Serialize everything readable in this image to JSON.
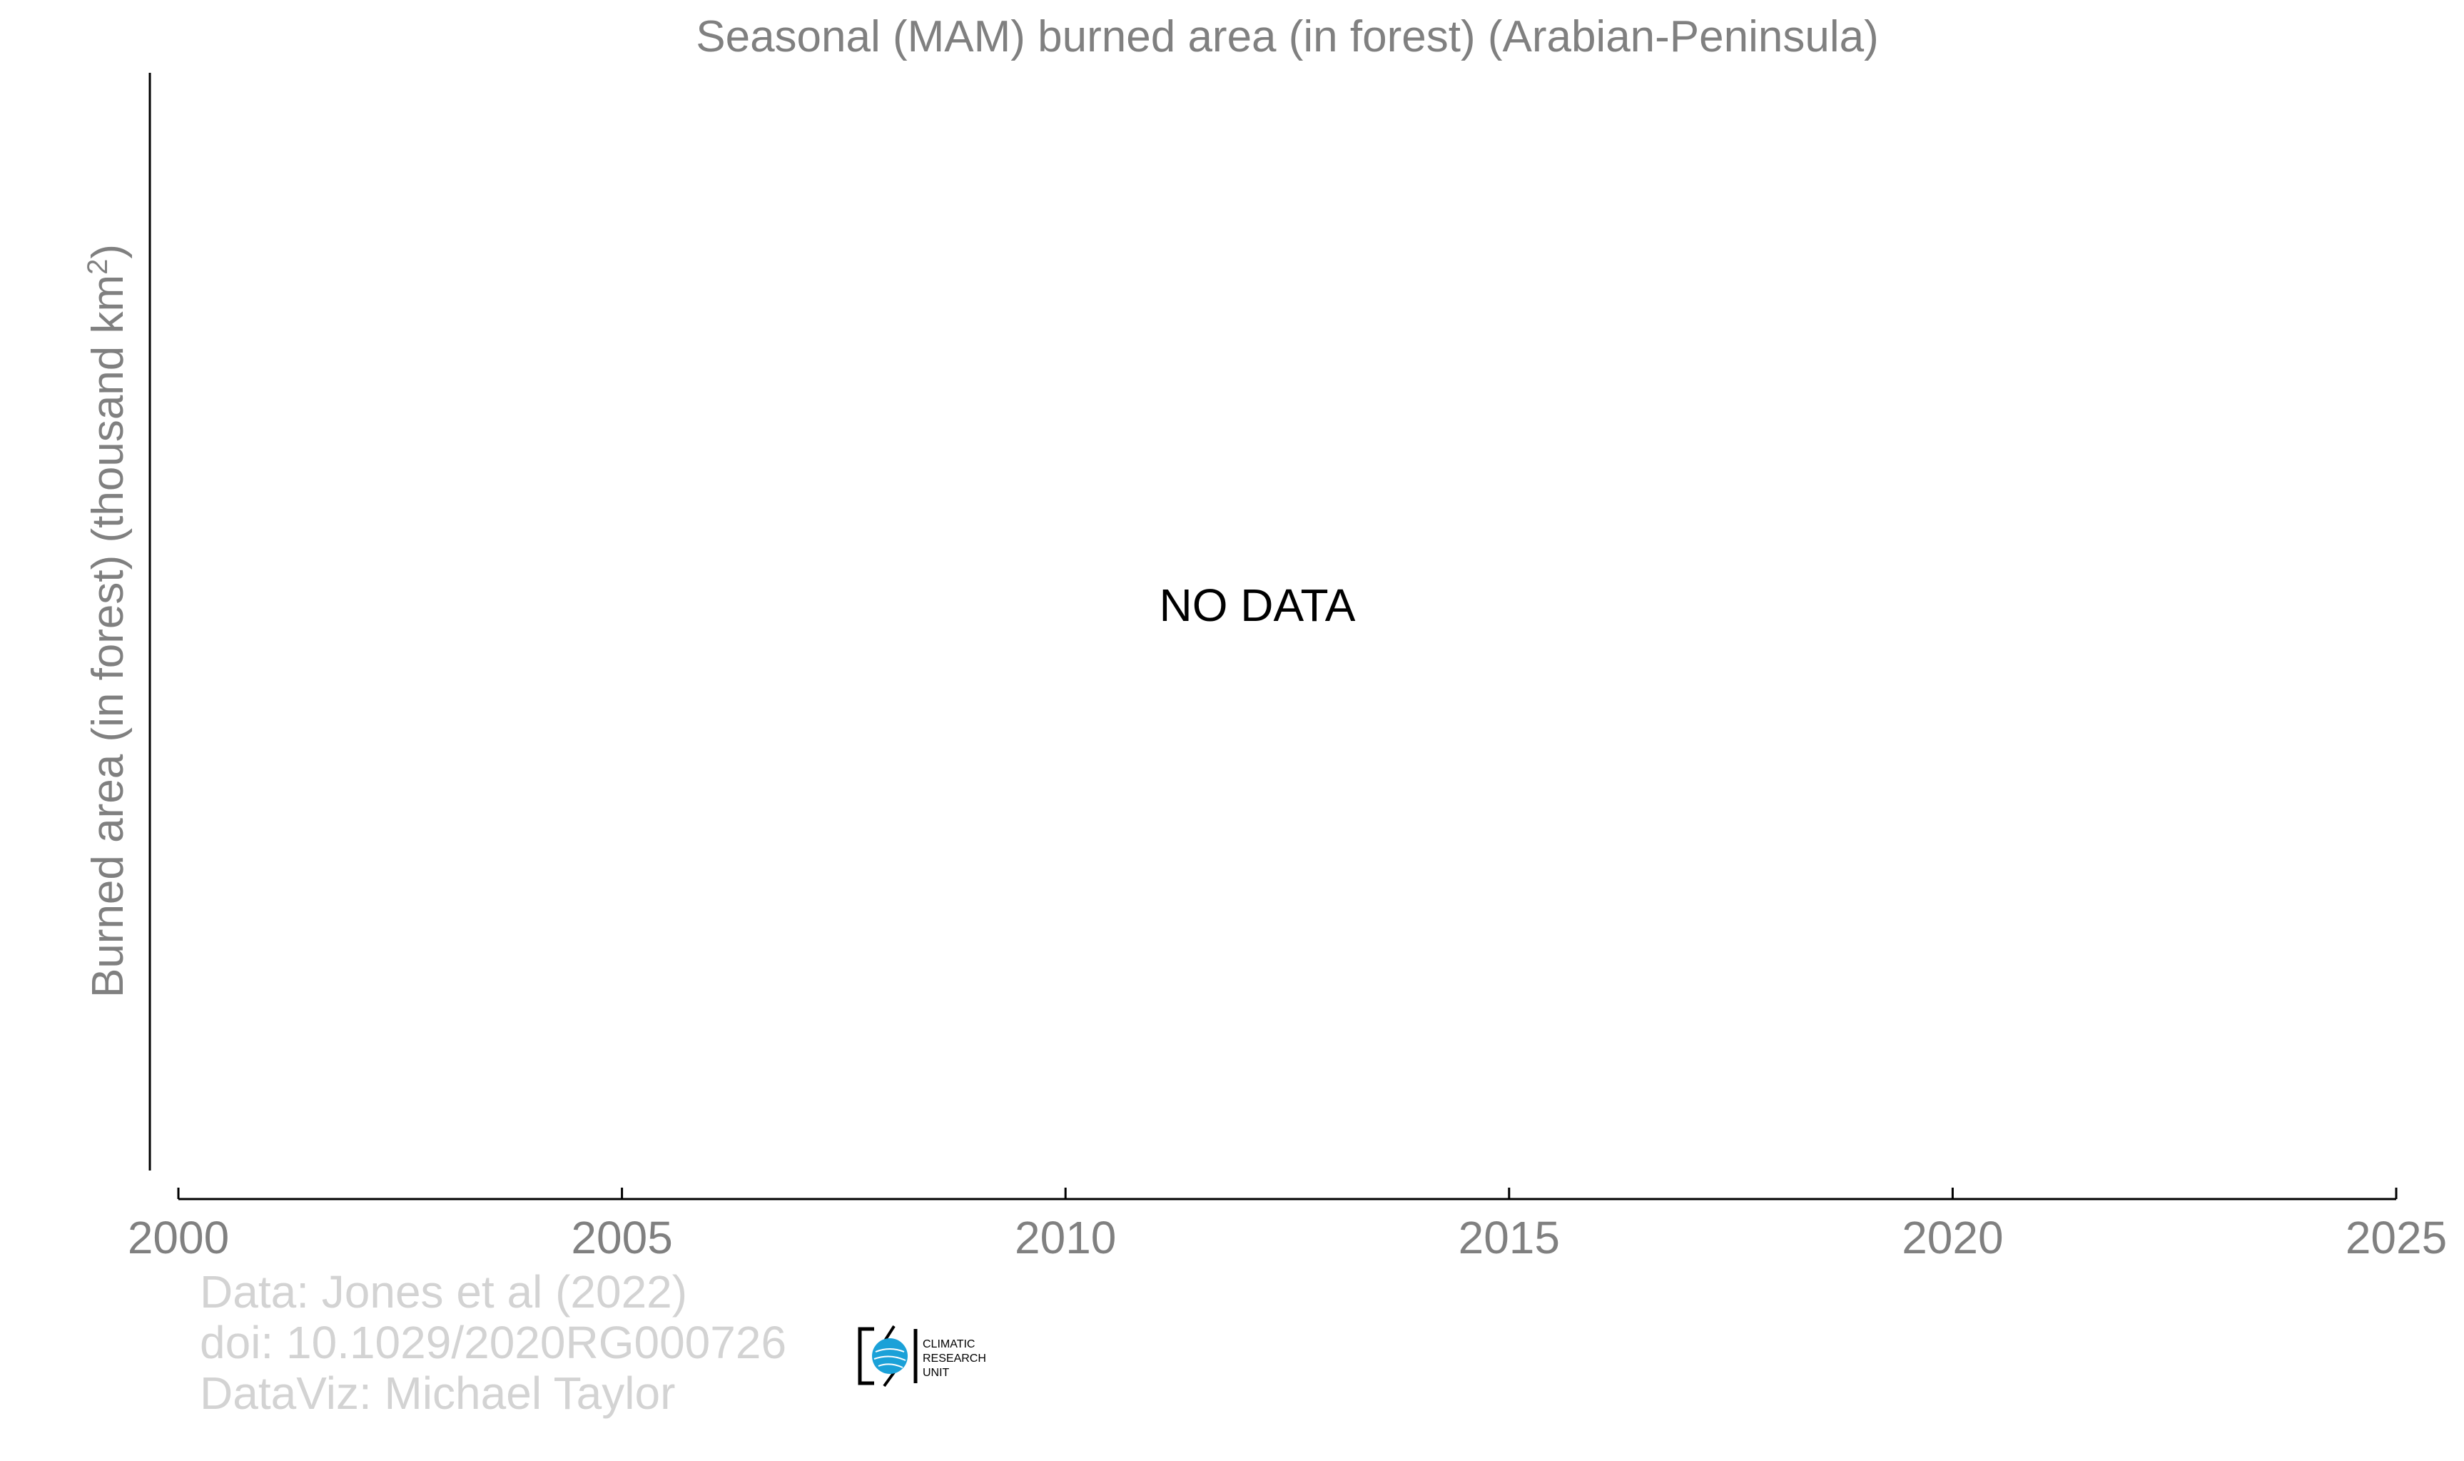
{
  "chart_data": {
    "type": "line",
    "title": "Seasonal (MAM) burned area (in forest) (Arabian-Peninsula)",
    "ylabel_main": "Burned area (in forest) (thousand km",
    "ylabel_sup": "2",
    "ylabel_close": ")",
    "xlabel": "",
    "xlim": [
      2000,
      2025
    ],
    "xticks": [
      2000,
      2005,
      2010,
      2015,
      2020,
      2025
    ],
    "xtick_labels": [
      "2000",
      "2005",
      "2010",
      "2015",
      "2020",
      "2025"
    ],
    "series": [],
    "annotation": "NO DATA",
    "grid": false,
    "legend": "none"
  },
  "credits": {
    "line1": "Data: Jones et al (2022)",
    "line2": "doi: 10.1029/2020RG000726",
    "line3": "DataViz: Michael Taylor"
  },
  "logo": {
    "name": "climatic-research-unit-logo",
    "lines": [
      "CLIMATIC",
      "RESEARCH",
      "UNIT"
    ],
    "globe_color": "#1ba1d8"
  },
  "colors": {
    "axis": "#000000",
    "text": "#808080",
    "credit": "#d3d3d3"
  }
}
